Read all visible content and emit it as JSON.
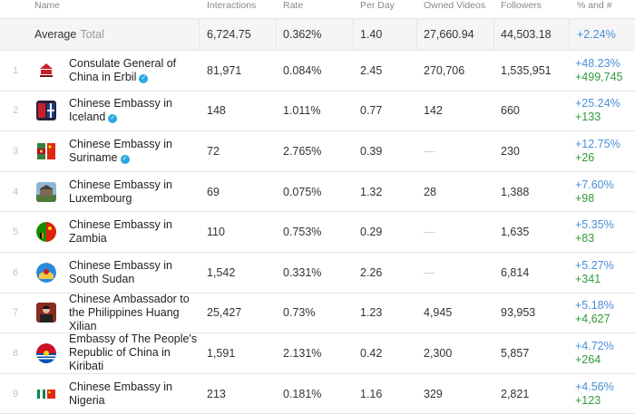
{
  "header": {
    "name": "Name",
    "interactions": "Interactions",
    "rate": "Rate",
    "per_day": "Per Day",
    "owned_videos": "Owned Videos",
    "followers": "Followers",
    "change": "% and #"
  },
  "average": {
    "label": "Average",
    "sublabel": "Total",
    "interactions": "6,724.75",
    "rate": "0.362%",
    "per_day": "1.40",
    "owned_videos": "27,660.94",
    "followers": "44,503.18",
    "pct": "+2.24%"
  },
  "colors": {
    "pct": "#4a8fd6",
    "num": "#2f9a39",
    "verified": "#2aa8e0"
  },
  "rows": [
    {
      "rank": "1",
      "name": "Consulate General of China in Erbil",
      "verified": true,
      "icon": "consulate-logo-icon",
      "interactions": "81,971",
      "rate": "0.084%",
      "per_day": "2.45",
      "owned_videos": "270,706",
      "followers": "1,535,951",
      "pct": "+48.23%",
      "num": "+499,745"
    },
    {
      "rank": "2",
      "name": "Chinese Embassy in Iceland",
      "verified": true,
      "icon": "iceland-embassy-avatar-icon",
      "interactions": "148",
      "rate": "1.011%",
      "per_day": "0.77",
      "owned_videos": "142",
      "followers": "660",
      "pct": "+25.24%",
      "num": "+133"
    },
    {
      "rank": "3",
      "name": "Chinese Embassy in Suriname",
      "verified": true,
      "icon": "suriname-china-flags-icon",
      "interactions": "72",
      "rate": "2.765%",
      "per_day": "0.39",
      "owned_videos": "—",
      "followers": "230",
      "pct": "+12.75%",
      "num": "+26"
    },
    {
      "rank": "4",
      "name": "Chinese Embassy in Luxembourg",
      "verified": false,
      "icon": "luxembourg-building-icon",
      "interactions": "69",
      "rate": "0.075%",
      "per_day": "1.32",
      "owned_videos": "28",
      "followers": "1,388",
      "pct": "+7.60%",
      "num": "+98"
    },
    {
      "rank": "5",
      "name": "Chinese Embassy in Zambia",
      "verified": false,
      "icon": "zambia-china-flags-icon",
      "interactions": "110",
      "rate": "0.753%",
      "per_day": "0.29",
      "owned_videos": "—",
      "followers": "1,635",
      "pct": "+5.35%",
      "num": "+83"
    },
    {
      "rank": "6",
      "name": "Chinese Embassy in South Sudan",
      "verified": false,
      "icon": "south-sudan-emblem-icon",
      "interactions": "1,542",
      "rate": "0.331%",
      "per_day": "2.26",
      "owned_videos": "—",
      "followers": "6,814",
      "pct": "+5.27%",
      "num": "+341"
    },
    {
      "rank": "7",
      "name": "Chinese Ambassador to the Philippines Huang Xilian",
      "verified": false,
      "icon": "ambassador-portrait-icon",
      "interactions": "25,427",
      "rate": "0.73%",
      "per_day": "1.23",
      "owned_videos": "4,945",
      "followers": "93,953",
      "pct": "+5.18%",
      "num": "+4,627"
    },
    {
      "rank": "8",
      "name": "Embassy of The People's Republic of China in Kiribati",
      "verified": false,
      "icon": "kiribati-flag-icon",
      "interactions": "1,591",
      "rate": "2.131%",
      "per_day": "0.42",
      "owned_videos": "2,300",
      "followers": "5,857",
      "pct": "+4.72%",
      "num": "+264"
    },
    {
      "rank": "9",
      "name": "Chinese Embassy in Nigeria",
      "verified": false,
      "icon": "nigeria-china-flags-icon",
      "interactions": "213",
      "rate": "0.181%",
      "per_day": "1.16",
      "owned_videos": "329",
      "followers": "2,821",
      "pct": "+4.56%",
      "num": "+123"
    }
  ]
}
